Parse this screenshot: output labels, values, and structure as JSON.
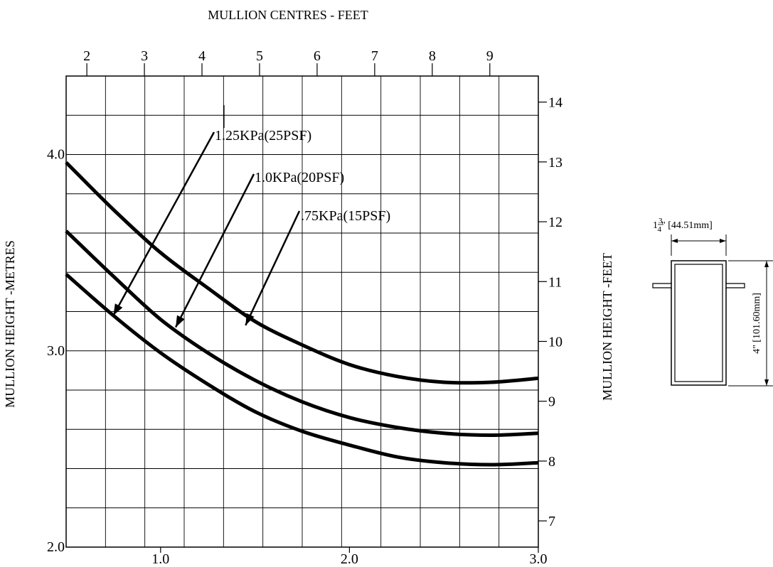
{
  "chart_data": {
    "type": "line",
    "title": "",
    "x_bottom": {
      "label": "",
      "unit": "m",
      "range": [
        0.5,
        3.0
      ],
      "ticks": [
        1.0,
        2.0,
        3.0
      ],
      "tick_labels": [
        "1.0",
        "2.0",
        "3.0"
      ]
    },
    "x_top": {
      "label": "MULLION CENTRES - FEET",
      "unit": "ft",
      "ticks": [
        2,
        3,
        4,
        5,
        6,
        7,
        8,
        9
      ],
      "tick_labels": [
        "2",
        "3",
        "4",
        "5",
        "6",
        "7",
        "8",
        "9"
      ]
    },
    "y_left": {
      "label": "MULLION HEIGHT -METRES",
      "unit": "m",
      "range": [
        2.0,
        4.4
      ],
      "ticks": [
        2.0,
        3.0,
        4.0
      ],
      "tick_labels": [
        "2.0",
        "3.0",
        "4.0"
      ]
    },
    "y_right": {
      "label": "MULLION HEIGHT -FEET",
      "unit": "ft",
      "ticks": [
        7,
        8,
        9,
        10,
        11,
        12,
        13,
        14
      ],
      "tick_labels": [
        "7",
        "8",
        "9",
        "10",
        "11",
        "12",
        "13",
        "14"
      ]
    },
    "grid": true,
    "series": [
      {
        "name": ".75KPa(15PSF)",
        "x": [
          0.5,
          0.75,
          1.0,
          1.25,
          1.5,
          1.75,
          2.0,
          2.25,
          2.5,
          2.75,
          3.0
        ],
        "y": [
          3.96,
          3.72,
          3.5,
          3.32,
          3.15,
          3.03,
          2.93,
          2.87,
          2.84,
          2.84,
          2.86
        ]
      },
      {
        "name": "1.0KPa(20PSF)",
        "x": [
          0.5,
          0.75,
          1.0,
          1.25,
          1.5,
          1.75,
          2.0,
          2.25,
          2.5,
          2.75,
          3.0
        ],
        "y": [
          3.61,
          3.38,
          3.16,
          2.99,
          2.85,
          2.74,
          2.66,
          2.61,
          2.58,
          2.57,
          2.58
        ]
      },
      {
        "name": "1.25KPa(25PSF)",
        "x": [
          0.5,
          0.75,
          1.0,
          1.25,
          1.5,
          1.75,
          2.0,
          2.25,
          2.5,
          2.75,
          3.0
        ],
        "y": [
          3.39,
          3.18,
          2.99,
          2.83,
          2.69,
          2.59,
          2.52,
          2.46,
          2.43,
          2.42,
          2.43
        ]
      }
    ],
    "annotations": [
      {
        "text": "1.25KPa(25PSF)",
        "series": "1.25KPa(25PSF)",
        "point": [
          0.75,
          3.18
        ]
      },
      {
        "text": "1.0KPa(20PSF)",
        "series": "1.0KPa(20PSF)",
        "point": [
          1.08,
          3.12
        ]
      },
      {
        "text": ".75KPa(15PSF)",
        "series": ".75KPa(15PSF)",
        "point": [
          1.45,
          3.13
        ]
      }
    ]
  },
  "section_detail": {
    "width_whole": "1",
    "width_num": "3",
    "width_den": "4",
    "width_rest": "\" [44.51mm]",
    "height_label": "4\" [101.60mm]"
  }
}
